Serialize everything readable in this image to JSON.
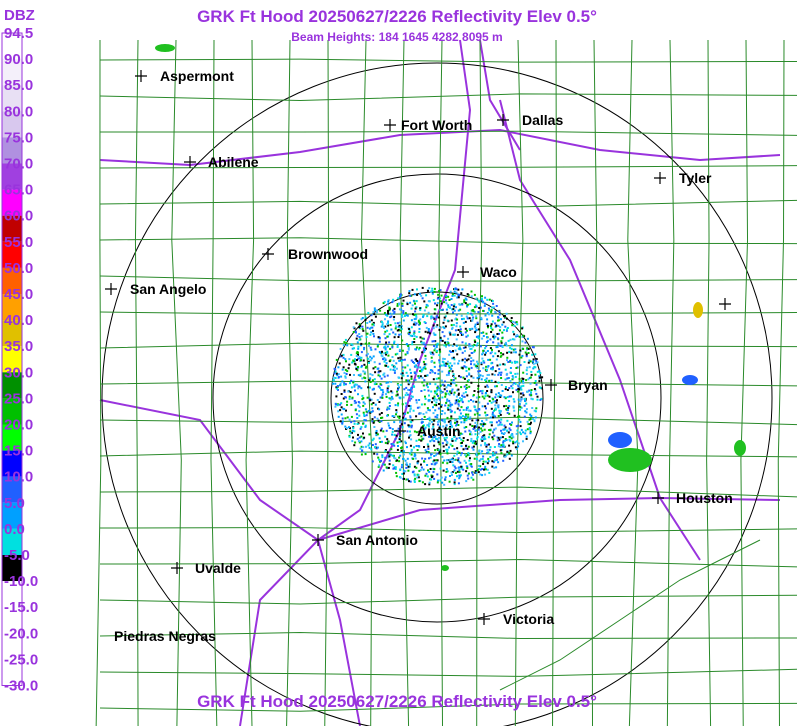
{
  "header": {
    "title": "GRK Ft Hood 20250627/2226 Reflectivity Elev 0.5°",
    "subtitle": "Beam Heights: 184 1645 4282 8095 m",
    "footer": "GRK Ft Hood 20250627/2226 Reflectivity Elev 0.5°"
  },
  "legend": {
    "unit": "DBZ",
    "labels": [
      "94.5",
      "90.0",
      "85.0",
      "80.0",
      "75.0",
      "70.0",
      "65.0",
      "60.0",
      "55.0",
      "50.0",
      "45.0",
      "40.0",
      "35.0",
      "30.0",
      "25.0",
      "20.0",
      "15.0",
      "10.0",
      "5.0",
      "0.0",
      "-5.0",
      "-10.0",
      "-15.0",
      "-20.0",
      "-25.0",
      "-30.0"
    ],
    "colors": [
      "#ffffff",
      "#f4f0fa",
      "#e8e0f4",
      "#d8c8ee",
      "#b090e0",
      "#a040e0",
      "#ff00ff",
      "#c00000",
      "#ff0000",
      "#ff6000",
      "#ffa000",
      "#e0c000",
      "#ffff00",
      "#009000",
      "#00c000",
      "#00ff00",
      "#0000ff",
      "#2060ff",
      "#00a0ff",
      "#00e0e0",
      "#000000",
      "#ffffff",
      "#ffffff",
      "#ffffff",
      "#ffffff"
    ]
  },
  "cities": [
    {
      "name": "Aspermont"
    },
    {
      "name": "Fort Worth"
    },
    {
      "name": "Dallas"
    },
    {
      "name": "Abilene"
    },
    {
      "name": "Tyler"
    },
    {
      "name": "Brownwood"
    },
    {
      "name": "Waco"
    },
    {
      "name": "San Angelo"
    },
    {
      "name": "Bryan"
    },
    {
      "name": "Austin"
    },
    {
      "name": "Houston"
    },
    {
      "name": "San Antonio"
    },
    {
      "name": "Uvalde"
    },
    {
      "name": "Victoria"
    },
    {
      "name": "Piedras Negras"
    }
  ]
}
